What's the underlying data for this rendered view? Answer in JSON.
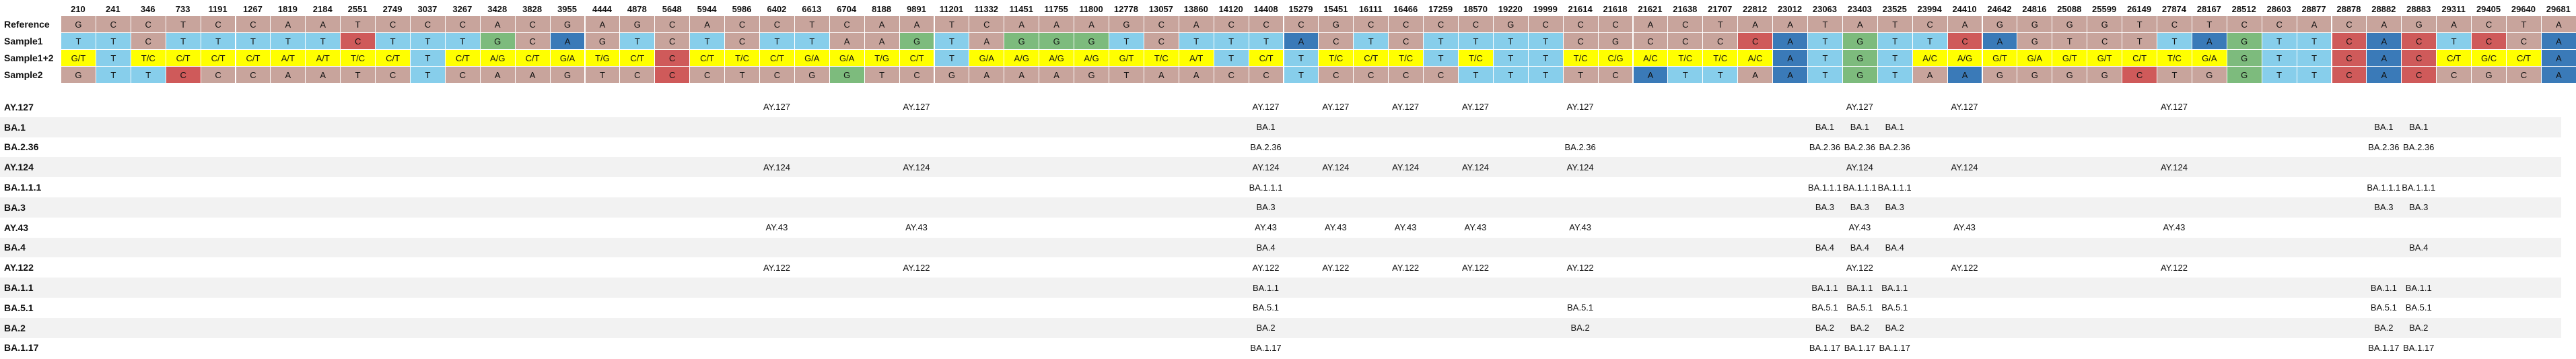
{
  "colors": {
    "A": "#3a7ab8",
    "C": "#cf5a5a",
    "G": "#7dbb7d",
    "T": "#87ceeb",
    "ambiguous": "#ffff00",
    "mismatch_bg": "#c8a49c",
    "row_stripe": "#f2f2f2"
  },
  "positions": [
    "210",
    "241",
    "346",
    "733",
    "1191",
    "1267",
    "1819",
    "2184",
    "2551",
    "2749",
    "3037",
    "3267",
    "3428",
    "3828",
    "3955",
    "4444",
    "4878",
    "5648",
    "5944",
    "5986",
    "6402",
    "6613",
    "6704",
    "8188",
    "9891",
    "11201",
    "11332",
    "11451",
    "11755",
    "11800",
    "12778",
    "13057",
    "13860",
    "14120",
    "14408",
    "15279",
    "15451",
    "16111",
    "16466",
    "17259",
    "18570",
    "19220",
    "19999",
    "21614",
    "21618",
    "21621",
    "21638",
    "21707",
    "22812",
    "23012",
    "23063",
    "23403",
    "23525",
    "23994",
    "24410",
    "24642",
    "24816",
    "25088",
    "25599",
    "26149",
    "27874",
    "28167",
    "28512",
    "28603",
    "28877",
    "28878",
    "28882",
    "28883",
    "29311",
    "29405",
    "29640",
    "29681"
  ],
  "sequence_rows": [
    {
      "label": "Reference",
      "calls": [
        "G",
        "C",
        "C",
        "T",
        "C",
        "C",
        "A",
        "A",
        "T",
        "C",
        "C",
        "C",
        "A",
        "C",
        "G",
        "A",
        "G",
        "C",
        "A",
        "C",
        "C",
        "T",
        "C",
        "A",
        "A",
        "T",
        "C",
        "A",
        "A",
        "A",
        "G",
        "C",
        "A",
        "C",
        "C",
        "C",
        "G",
        "C",
        "C",
        "C",
        "C",
        "G",
        "C",
        "C",
        "C",
        "A",
        "C",
        "T",
        "A",
        "A",
        "T",
        "A",
        "T",
        "C",
        "A",
        "G",
        "G",
        "G",
        "G",
        "T",
        "C",
        "T",
        "C",
        "C",
        "A",
        "C",
        "A",
        "G",
        "A",
        "C",
        "T",
        "A"
      ],
      "fills": [
        "m",
        "m",
        "m",
        "m",
        "m",
        "m",
        "m",
        "m",
        "m",
        "m",
        "m",
        "m",
        "m",
        "m",
        "m",
        "m",
        "m",
        "m",
        "m",
        "m",
        "m",
        "m",
        "m",
        "m",
        "m",
        "m",
        "m",
        "m",
        "m",
        "m",
        "m",
        "m",
        "m",
        "m",
        "m",
        "m",
        "m",
        "m",
        "m",
        "m",
        "m",
        "m",
        "m",
        "m",
        "m",
        "m",
        "m",
        "m",
        "m",
        "m",
        "m",
        "m",
        "m",
        "m",
        "m",
        "m",
        "m",
        "m",
        "m",
        "m",
        "m",
        "m",
        "m",
        "m",
        "m",
        "m",
        "m",
        "m",
        "m",
        "m",
        "m",
        "m"
      ]
    },
    {
      "label": "Sample1",
      "calls": [
        "T",
        "T",
        "C",
        "T",
        "T",
        "T",
        "T",
        "T",
        "C",
        "T",
        "T",
        "T",
        "G",
        "C",
        "A",
        "G",
        "T",
        "C",
        "T",
        "C",
        "T",
        "T",
        "A",
        "A",
        "G",
        "T",
        "A",
        "G",
        "G",
        "G",
        "T",
        "C",
        "T",
        "T",
        "T",
        "A",
        "C",
        "T",
        "C",
        "T",
        "T",
        "T",
        "T",
        "C",
        "G",
        "C",
        "C",
        "C",
        "C",
        "A",
        "T",
        "G",
        "T",
        "T",
        "C",
        "A",
        "G",
        "T",
        "C",
        "T",
        "T",
        "A",
        "G",
        "T",
        "T",
        "C",
        "A",
        "C",
        "T",
        "C",
        "C",
        "A"
      ],
      "fills": [
        "T",
        "T",
        "m",
        "T",
        "T",
        "T",
        "T",
        "T",
        "C",
        "T",
        "T",
        "T",
        "G",
        "m",
        "A",
        "m",
        "T",
        "m",
        "T",
        "m",
        "T",
        "T",
        "m",
        "m",
        "G",
        "T",
        "m",
        "G",
        "G",
        "G",
        "T",
        "m",
        "T",
        "T",
        "T",
        "A",
        "m",
        "T",
        "m",
        "T",
        "T",
        "T",
        "T",
        "m",
        "m",
        "m",
        "m",
        "m",
        "C",
        "A",
        "T",
        "G",
        "T",
        "T",
        "C",
        "A",
        "m",
        "m",
        "m",
        "m",
        "T",
        "A",
        "G",
        "T",
        "T",
        "C",
        "A",
        "C",
        "T",
        "C",
        "m",
        "A"
      ]
    },
    {
      "label": "Sample1+2",
      "calls": [
        "G/T",
        "T",
        "T/C",
        "C/T",
        "C/T",
        "C/T",
        "A/T",
        "A/T",
        "T/C",
        "C/T",
        "T",
        "C/T",
        "A/G",
        "C/T",
        "G/A",
        "T/G",
        "C/T",
        "C",
        "C/T",
        "T/C",
        "C/T",
        "G/A",
        "G/A",
        "T/G",
        "C/T",
        "T",
        "G/A",
        "A/G",
        "A/G",
        "A/G",
        "G/T",
        "T/C",
        "A/T",
        "T",
        "C/T",
        "T",
        "T/C",
        "C/T",
        "T/C",
        "T",
        "T/C",
        "T",
        "T",
        "T/C",
        "C/G",
        "A/C",
        "T/C",
        "T/C",
        "A/C",
        "A",
        "T",
        "G",
        "T",
        "A/C",
        "A/G",
        "G/T",
        "G/A",
        "G/T",
        "G/T",
        "C/T",
        "T/C",
        "G/A",
        "G",
        "T",
        "T",
        "C",
        "A",
        "C",
        "C/T",
        "G/C",
        "C/T",
        "A"
      ],
      "fills": [
        "y",
        "T",
        "y",
        "y",
        "y",
        "y",
        "y",
        "y",
        "y",
        "y",
        "T",
        "y",
        "y",
        "y",
        "y",
        "y",
        "y",
        "C",
        "y",
        "y",
        "y",
        "y",
        "y",
        "y",
        "y",
        "T",
        "y",
        "y",
        "y",
        "y",
        "y",
        "y",
        "y",
        "T",
        "y",
        "T",
        "y",
        "y",
        "y",
        "T",
        "y",
        "T",
        "T",
        "y",
        "y",
        "y",
        "y",
        "y",
        "y",
        "A",
        "T",
        "G",
        "T",
        "y",
        "y",
        "y",
        "y",
        "y",
        "y",
        "y",
        "y",
        "y",
        "G",
        "T",
        "T",
        "C",
        "A",
        "C",
        "y",
        "y",
        "y",
        "A"
      ]
    },
    {
      "label": "Sample2",
      "calls": [
        "G",
        "T",
        "T",
        "C",
        "C",
        "C",
        "A",
        "A",
        "T",
        "C",
        "T",
        "C",
        "A",
        "A",
        "G",
        "T",
        "C",
        "C",
        "C",
        "T",
        "C",
        "G",
        "G",
        "T",
        "C",
        "G",
        "A",
        "A",
        "A",
        "G",
        "T",
        "A",
        "A",
        "C",
        "C",
        "T",
        "C",
        "C",
        "C",
        "C",
        "T",
        "T",
        "T",
        "T",
        "C",
        "A",
        "T",
        "T",
        "A",
        "A",
        "T",
        "G",
        "T",
        "A",
        "A",
        "G",
        "G",
        "G",
        "G",
        "C",
        "T",
        "G",
        "G",
        "T",
        "T",
        "C",
        "A",
        "C",
        "C",
        "G",
        "C",
        "A"
      ],
      "fills": [
        "m",
        "T",
        "T",
        "C",
        "m",
        "m",
        "m",
        "m",
        "m",
        "m",
        "T",
        "m",
        "m",
        "m",
        "m",
        "m",
        "m",
        "C",
        "m",
        "m",
        "m",
        "m",
        "G",
        "m",
        "m",
        "m",
        "m",
        "m",
        "m",
        "m",
        "m",
        "m",
        "m",
        "m",
        "m",
        "T",
        "m",
        "m",
        "m",
        "m",
        "T",
        "T",
        "T",
        "m",
        "m",
        "A",
        "T",
        "T",
        "m",
        "A",
        "T",
        "G",
        "T",
        "m",
        "A",
        "m",
        "m",
        "m",
        "m",
        "C",
        "m",
        "m",
        "G",
        "T",
        "T",
        "C",
        "A",
        "C",
        "m",
        "m",
        "m",
        "A"
      ]
    }
  ],
  "lineage_rows": [
    {
      "label": "AY.127",
      "marks": [
        [
          20,
          "AY.127"
        ],
        [
          24,
          "AY.127"
        ],
        [
          34,
          "AY.127"
        ],
        [
          36,
          "AY.127"
        ],
        [
          38,
          "AY.127"
        ],
        [
          40,
          "AY.127"
        ],
        [
          43,
          "AY.127"
        ],
        [
          51,
          "AY.127"
        ],
        [
          54,
          "AY.127"
        ],
        [
          60,
          "AY.127"
        ]
      ]
    },
    {
      "label": "BA.1",
      "marks": [
        [
          34,
          "BA.1"
        ],
        [
          50,
          "BA.1"
        ],
        [
          51,
          "BA.1"
        ],
        [
          52,
          "BA.1"
        ],
        [
          66,
          "BA.1"
        ],
        [
          67,
          "BA.1"
        ]
      ]
    },
    {
      "label": "BA.2.36",
      "marks": [
        [
          34,
          "BA.2.36"
        ],
        [
          43,
          "BA.2.36"
        ],
        [
          50,
          "BA.2.36"
        ],
        [
          51,
          "BA.2.36"
        ],
        [
          52,
          "BA.2.36"
        ],
        [
          66,
          "BA.2.36"
        ],
        [
          67,
          "BA.2.36"
        ]
      ]
    },
    {
      "label": "AY.124",
      "marks": [
        [
          20,
          "AY.124"
        ],
        [
          24,
          "AY.124"
        ],
        [
          34,
          "AY.124"
        ],
        [
          36,
          "AY.124"
        ],
        [
          38,
          "AY.124"
        ],
        [
          40,
          "AY.124"
        ],
        [
          43,
          "AY.124"
        ],
        [
          51,
          "AY.124"
        ],
        [
          54,
          "AY.124"
        ],
        [
          60,
          "AY.124"
        ]
      ]
    },
    {
      "label": "BA.1.1.1",
      "marks": [
        [
          34,
          "BA.1.1.1"
        ],
        [
          50,
          "BA.1.1.1"
        ],
        [
          51,
          "BA.1.1.1"
        ],
        [
          52,
          "BA.1.1.1"
        ],
        [
          66,
          "BA.1.1.1"
        ],
        [
          67,
          "BA.1.1.1"
        ]
      ]
    },
    {
      "label": "BA.3",
      "marks": [
        [
          34,
          "BA.3"
        ],
        [
          50,
          "BA.3"
        ],
        [
          51,
          "BA.3"
        ],
        [
          52,
          "BA.3"
        ],
        [
          66,
          "BA.3"
        ],
        [
          67,
          "BA.3"
        ]
      ]
    },
    {
      "label": "AY.43",
      "marks": [
        [
          20,
          "AY.43"
        ],
        [
          24,
          "AY.43"
        ],
        [
          34,
          "AY.43"
        ],
        [
          36,
          "AY.43"
        ],
        [
          38,
          "AY.43"
        ],
        [
          40,
          "AY.43"
        ],
        [
          43,
          "AY.43"
        ],
        [
          51,
          "AY.43"
        ],
        [
          54,
          "AY.43"
        ],
        [
          60,
          "AY.43"
        ]
      ]
    },
    {
      "label": "BA.4",
      "marks": [
        [
          34,
          "BA.4"
        ],
        [
          50,
          "BA.4"
        ],
        [
          51,
          "BA.4"
        ],
        [
          52,
          "BA.4"
        ],
        [
          67,
          "BA.4"
        ]
      ]
    },
    {
      "label": "AY.122",
      "marks": [
        [
          20,
          "AY.122"
        ],
        [
          24,
          "AY.122"
        ],
        [
          34,
          "AY.122"
        ],
        [
          36,
          "AY.122"
        ],
        [
          38,
          "AY.122"
        ],
        [
          40,
          "AY.122"
        ],
        [
          43,
          "AY.122"
        ],
        [
          51,
          "AY.122"
        ],
        [
          54,
          "AY.122"
        ],
        [
          60,
          "AY.122"
        ]
      ]
    },
    {
      "label": "BA.1.1",
      "marks": [
        [
          34,
          "BA.1.1"
        ],
        [
          50,
          "BA.1.1"
        ],
        [
          51,
          "BA.1.1"
        ],
        [
          52,
          "BA.1.1"
        ],
        [
          66,
          "BA.1.1"
        ],
        [
          67,
          "BA.1.1"
        ]
      ]
    },
    {
      "label": "BA.5.1",
      "marks": [
        [
          34,
          "BA.5.1"
        ],
        [
          43,
          "BA.5.1"
        ],
        [
          50,
          "BA.5.1"
        ],
        [
          51,
          "BA.5.1"
        ],
        [
          52,
          "BA.5.1"
        ],
        [
          66,
          "BA.5.1"
        ],
        [
          67,
          "BA.5.1"
        ]
      ]
    },
    {
      "label": "BA.2",
      "marks": [
        [
          34,
          "BA.2"
        ],
        [
          43,
          "BA.2"
        ],
        [
          50,
          "BA.2"
        ],
        [
          51,
          "BA.2"
        ],
        [
          52,
          "BA.2"
        ],
        [
          66,
          "BA.2"
        ],
        [
          67,
          "BA.2"
        ]
      ]
    },
    {
      "label": "BA.1.17",
      "marks": [
        [
          34,
          "BA.1.17"
        ],
        [
          50,
          "BA.1.17"
        ],
        [
          51,
          "BA.1.17"
        ],
        [
          52,
          "BA.1.17"
        ],
        [
          66,
          "BA.1.17"
        ],
        [
          67,
          "BA.1.17"
        ]
      ]
    }
  ]
}
